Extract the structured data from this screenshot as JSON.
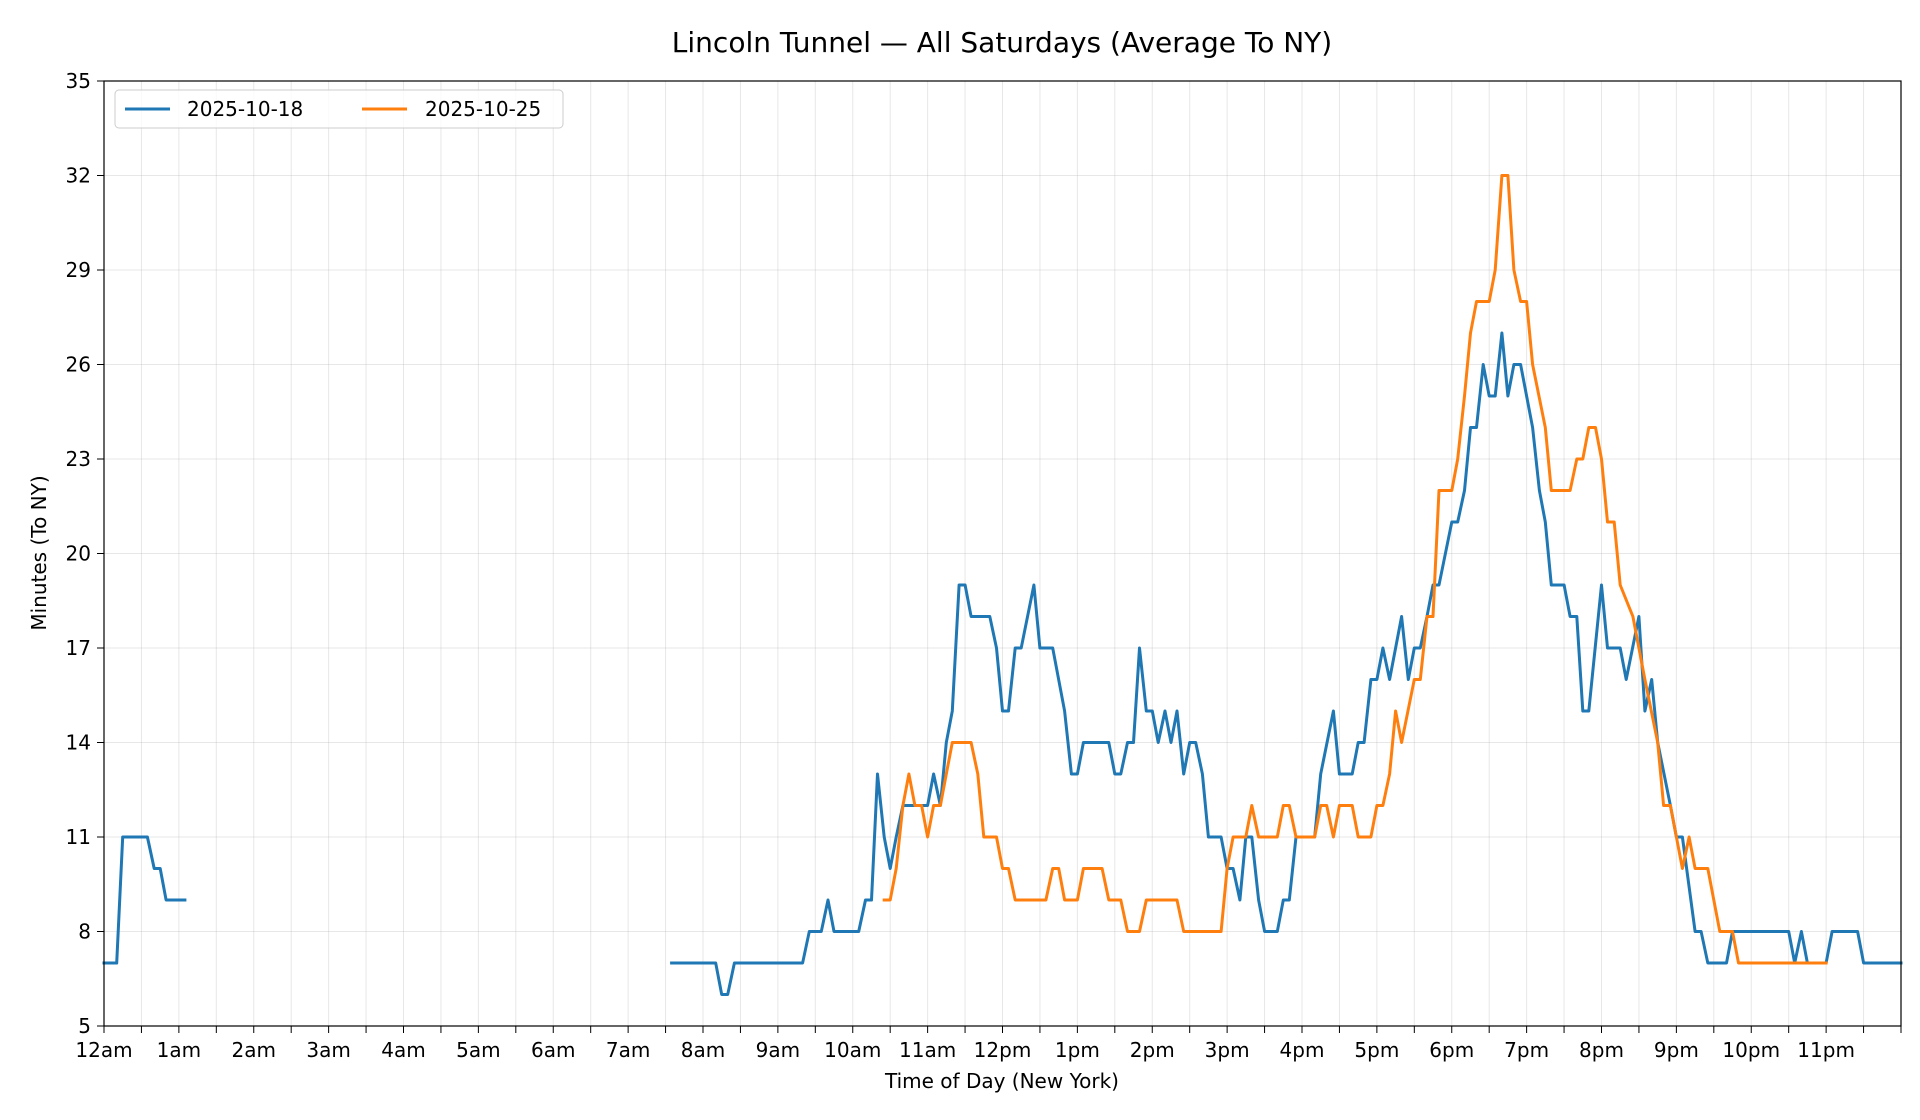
{
  "chart_data": {
    "type": "line",
    "title": "Lincoln Tunnel — All Saturdays (Average To NY)",
    "xlabel": "Time of Day (New York)",
    "ylabel": "Minutes (To NY)",
    "xlim": [
      0,
      24
    ],
    "ylim": [
      5,
      35
    ],
    "yticks": [
      5,
      8,
      11,
      14,
      17,
      20,
      23,
      26,
      29,
      32,
      35
    ],
    "xtick_labels": [
      "12am",
      "1am",
      "2am",
      "3am",
      "4am",
      "5am",
      "6am",
      "7am",
      "8am",
      "9am",
      "10am",
      "11am",
      "12pm",
      "1pm",
      "2pm",
      "3pm",
      "4pm",
      "5pm",
      "6pm",
      "7pm",
      "8pm",
      "9pm",
      "10pm",
      "11pm"
    ],
    "grid": true,
    "legend_position": "top-left",
    "series": [
      {
        "name": "2025-10-18",
        "color": "#1f77b4",
        "segments": [
          [
            [
              0,
              7
            ],
            [
              0.17,
              7
            ],
            [
              0.25,
              11
            ],
            [
              0.58,
              11
            ],
            [
              0.67,
              10
            ],
            [
              0.75,
              10
            ],
            [
              0.83,
              9
            ],
            [
              1.08,
              9
            ]
          ],
          [
            [
              7.58,
              7
            ],
            [
              8.17,
              7
            ],
            [
              8.25,
              6
            ],
            [
              8.33,
              6
            ],
            [
              8.42,
              7
            ],
            [
              9.33,
              7
            ],
            [
              9.42,
              8
            ],
            [
              9.58,
              8
            ],
            [
              9.67,
              9
            ],
            [
              9.75,
              8
            ],
            [
              10.08,
              8
            ],
            [
              10.17,
              9
            ],
            [
              10.25,
              9
            ],
            [
              10.33,
              13
            ],
            [
              10.42,
              11
            ],
            [
              10.5,
              10
            ],
            [
              10.58,
              11
            ],
            [
              10.67,
              12
            ],
            [
              11,
              12
            ],
            [
              11.08,
              13
            ],
            [
              11.17,
              12
            ],
            [
              11.25,
              14
            ],
            [
              11.33,
              15
            ],
            [
              11.42,
              19
            ],
            [
              11.5,
              19
            ],
            [
              11.58,
              18
            ],
            [
              11.83,
              18
            ],
            [
              11.92,
              17
            ],
            [
              12,
              15
            ],
            [
              12.08,
              15
            ],
            [
              12.17,
              17
            ],
            [
              12.25,
              17
            ],
            [
              12.42,
              19
            ],
            [
              12.5,
              17
            ],
            [
              12.67,
              17
            ],
            [
              12.83,
              15
            ],
            [
              12.92,
              13
            ],
            [
              13,
              13
            ],
            [
              13.08,
              14
            ],
            [
              13.42,
              14
            ],
            [
              13.5,
              13
            ],
            [
              13.58,
              13
            ],
            [
              13.67,
              14
            ],
            [
              13.75,
              14
            ],
            [
              13.83,
              17
            ],
            [
              13.92,
              15
            ],
            [
              14,
              15
            ],
            [
              14.08,
              14
            ],
            [
              14.17,
              15
            ],
            [
              14.25,
              14
            ],
            [
              14.33,
              15
            ],
            [
              14.42,
              13
            ],
            [
              14.5,
              14
            ],
            [
              14.58,
              14
            ],
            [
              14.67,
              13
            ],
            [
              14.75,
              11
            ],
            [
              14.92,
              11
            ],
            [
              15,
              10
            ],
            [
              15.08,
              10
            ],
            [
              15.17,
              9
            ],
            [
              15.25,
              11
            ],
            [
              15.33,
              11
            ],
            [
              15.42,
              9
            ],
            [
              15.5,
              8
            ],
            [
              15.67,
              8
            ],
            [
              15.75,
              9
            ],
            [
              15.83,
              9
            ],
            [
              15.92,
              11
            ],
            [
              16.17,
              11
            ],
            [
              16.25,
              13
            ],
            [
              16.42,
              15
            ],
            [
              16.5,
              13
            ],
            [
              16.67,
              13
            ],
            [
              16.75,
              14
            ],
            [
              16.83,
              14
            ],
            [
              16.92,
              16
            ],
            [
              17,
              16
            ],
            [
              17.08,
              17
            ],
            [
              17.17,
              16
            ],
            [
              17.33,
              18
            ],
            [
              17.42,
              16
            ],
            [
              17.5,
              17
            ],
            [
              17.58,
              17
            ],
            [
              17.67,
              18
            ],
            [
              17.75,
              19
            ],
            [
              17.83,
              19
            ],
            [
              18,
              21
            ],
            [
              18.08,
              21
            ],
            [
              18.17,
              22
            ],
            [
              18.25,
              24
            ],
            [
              18.33,
              24
            ],
            [
              18.42,
              26
            ],
            [
              18.5,
              25
            ],
            [
              18.58,
              25
            ],
            [
              18.67,
              27
            ],
            [
              18.75,
              25
            ],
            [
              18.83,
              26
            ],
            [
              18.92,
              26
            ],
            [
              19.08,
              24
            ],
            [
              19.17,
              22
            ],
            [
              19.25,
              21
            ],
            [
              19.33,
              19
            ],
            [
              19.5,
              19
            ],
            [
              19.58,
              18
            ],
            [
              19.67,
              18
            ],
            [
              19.75,
              15
            ],
            [
              19.83,
              15
            ],
            [
              20,
              19
            ],
            [
              20.08,
              17
            ],
            [
              20.25,
              17
            ],
            [
              20.33,
              16
            ],
            [
              20.5,
              18
            ],
            [
              20.58,
              15
            ],
            [
              20.67,
              16
            ],
            [
              20.75,
              14
            ],
            [
              20.92,
              12
            ],
            [
              21,
              11
            ],
            [
              21.08,
              11
            ],
            [
              21.25,
              8
            ],
            [
              21.33,
              8
            ],
            [
              21.42,
              7
            ],
            [
              21.67,
              7
            ],
            [
              21.75,
              8
            ],
            [
              22.5,
              8
            ],
            [
              22.58,
              7
            ],
            [
              22.67,
              8
            ],
            [
              22.75,
              7
            ],
            [
              23,
              7
            ],
            [
              23.08,
              8
            ],
            [
              23.42,
              8
            ],
            [
              23.5,
              7
            ],
            [
              24,
              7
            ]
          ]
        ]
      },
      {
        "name": "2025-10-25",
        "color": "#ff7f0e",
        "segments": [
          [
            [
              10.42,
              9
            ],
            [
              10.5,
              9
            ],
            [
              10.58,
              10
            ],
            [
              10.67,
              12
            ],
            [
              10.75,
              13
            ],
            [
              10.83,
              12
            ],
            [
              10.92,
              12
            ],
            [
              11,
              11
            ],
            [
              11.08,
              12
            ],
            [
              11.17,
              12
            ],
            [
              11.25,
              13
            ],
            [
              11.33,
              14
            ],
            [
              11.58,
              14
            ],
            [
              11.67,
              13
            ],
            [
              11.75,
              11
            ],
            [
              11.92,
              11
            ],
            [
              12,
              10
            ],
            [
              12.08,
              10
            ],
            [
              12.17,
              9
            ],
            [
              12.58,
              9
            ],
            [
              12.67,
              10
            ],
            [
              12.75,
              10
            ],
            [
              12.83,
              9
            ],
            [
              13,
              9
            ],
            [
              13.08,
              10
            ],
            [
              13.33,
              10
            ],
            [
              13.42,
              9
            ],
            [
              13.58,
              9
            ],
            [
              13.67,
              8
            ],
            [
              13.83,
              8
            ],
            [
              13.92,
              9
            ],
            [
              14.33,
              9
            ],
            [
              14.42,
              8
            ],
            [
              14.92,
              8
            ],
            [
              15,
              10
            ],
            [
              15.08,
              11
            ],
            [
              15.25,
              11
            ],
            [
              15.33,
              12
            ],
            [
              15.42,
              11
            ],
            [
              15.67,
              11
            ],
            [
              15.75,
              12
            ],
            [
              15.83,
              12
            ],
            [
              15.92,
              11
            ],
            [
              16.17,
              11
            ],
            [
              16.25,
              12
            ],
            [
              16.33,
              12
            ],
            [
              16.42,
              11
            ],
            [
              16.5,
              12
            ],
            [
              16.67,
              12
            ],
            [
              16.75,
              11
            ],
            [
              16.92,
              11
            ],
            [
              17,
              12
            ],
            [
              17.08,
              12
            ],
            [
              17.17,
              13
            ],
            [
              17.25,
              15
            ],
            [
              17.33,
              14
            ],
            [
              17.5,
              16
            ],
            [
              17.58,
              16
            ],
            [
              17.67,
              18
            ],
            [
              17.75,
              18
            ],
            [
              17.83,
              22
            ],
            [
              18,
              22
            ],
            [
              18.08,
              23
            ],
            [
              18.17,
              25
            ],
            [
              18.25,
              27
            ],
            [
              18.33,
              28
            ],
            [
              18.5,
              28
            ],
            [
              18.58,
              29
            ],
            [
              18.67,
              32
            ],
            [
              18.75,
              32
            ],
            [
              18.83,
              29
            ],
            [
              18.92,
              28
            ],
            [
              19,
              28
            ],
            [
              19.08,
              26
            ],
            [
              19.25,
              24
            ],
            [
              19.33,
              22
            ],
            [
              19.58,
              22
            ],
            [
              19.67,
              23
            ],
            [
              19.75,
              23
            ],
            [
              19.83,
              24
            ],
            [
              19.92,
              24
            ],
            [
              20,
              23
            ],
            [
              20.08,
              21
            ],
            [
              20.17,
              21
            ],
            [
              20.25,
              19
            ],
            [
              20.42,
              18
            ],
            [
              20.58,
              16
            ],
            [
              20.75,
              14
            ],
            [
              20.83,
              12
            ],
            [
              20.92,
              12
            ],
            [
              21,
              11
            ],
            [
              21.08,
              10
            ],
            [
              21.17,
              11
            ],
            [
              21.25,
              10
            ],
            [
              21.42,
              10
            ],
            [
              21.58,
              8
            ],
            [
              21.75,
              8
            ],
            [
              21.83,
              7
            ],
            [
              23,
              7
            ]
          ]
        ]
      }
    ]
  }
}
